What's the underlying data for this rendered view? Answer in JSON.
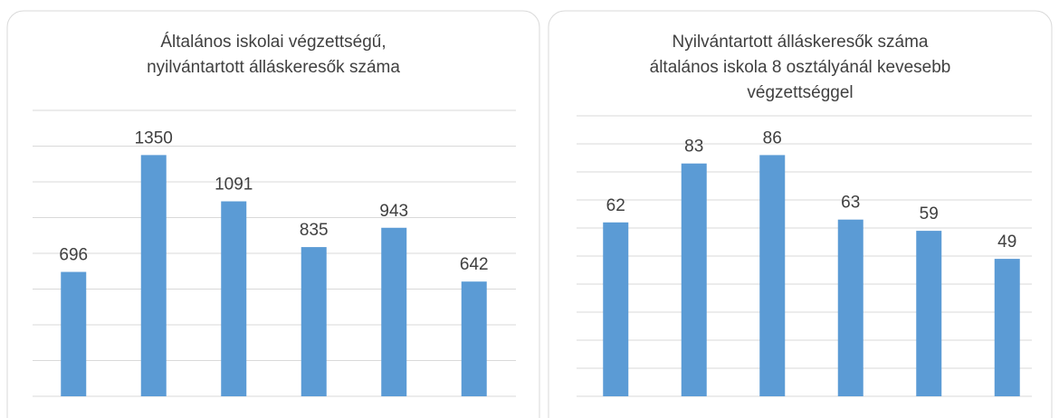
{
  "chart_data": [
    {
      "type": "bar",
      "title": [
        "Általános iskolai végzettségű,",
        "nyilvántartott álláskeresők száma"
      ],
      "values": [
        696,
        1350,
        1091,
        835,
        943,
        642
      ],
      "color": "#5b9bd5",
      "ylim": [
        0,
        1600
      ],
      "yticks": [
        0,
        200,
        400,
        600,
        800,
        1000,
        1200,
        1400,
        1600
      ],
      "grid": true
    },
    {
      "type": "bar",
      "title": [
        "Nyilvántartott álláskeresők száma",
        "általános iskola 8 osztályánál kevesebb",
        "végzettséggel"
      ],
      "values": [
        62,
        83,
        86,
        63,
        59,
        49
      ],
      "color": "#5b9bd5",
      "ylim": [
        0,
        100
      ],
      "yticks": [
        0,
        10,
        20,
        30,
        40,
        50,
        60,
        70,
        80,
        90,
        100
      ],
      "grid": true
    }
  ]
}
